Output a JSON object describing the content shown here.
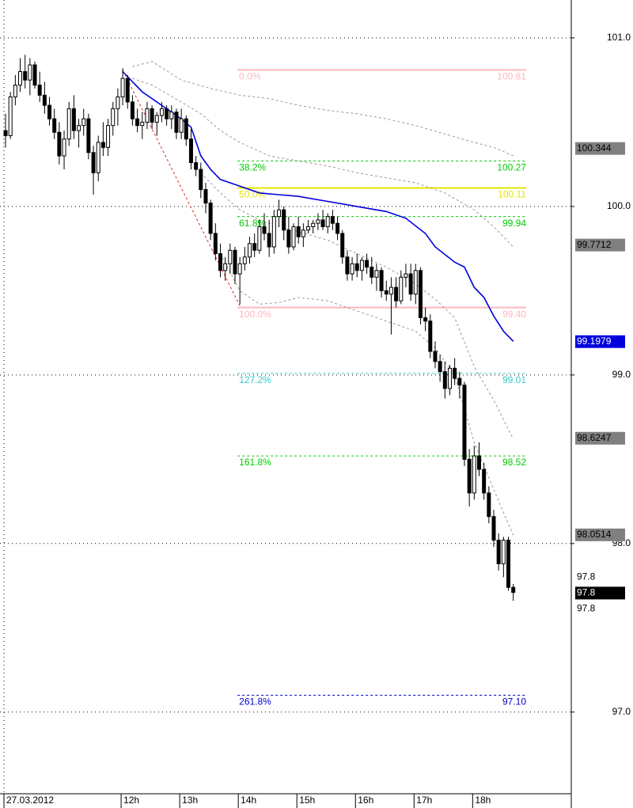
{
  "chart_data": {
    "type": "candlestick",
    "categories": [
      "27.03.2012",
      null,
      null,
      null,
      null,
      null,
      null,
      null,
      null,
      null,
      null,
      null,
      null,
      null,
      null,
      null,
      null,
      null,
      null,
      null,
      null,
      null,
      null,
      null,
      "12h",
      null,
      null,
      null,
      null,
      null,
      null,
      null,
      null,
      null,
      null,
      null,
      "13h",
      null,
      null,
      null,
      null,
      null,
      null,
      null,
      null,
      null,
      null,
      null,
      "14h",
      null,
      null,
      null,
      null,
      null,
      null,
      null,
      null,
      null,
      null,
      null,
      "15h",
      null,
      null,
      null,
      null,
      null,
      null,
      null,
      null,
      null,
      null,
      null,
      "16h",
      null,
      null,
      null,
      null,
      null,
      null,
      null,
      null,
      null,
      null,
      null,
      "17h",
      null,
      null,
      null,
      null,
      null,
      null,
      null,
      null,
      null,
      null,
      null,
      "18h",
      null,
      null,
      null,
      null,
      null,
      null,
      null,
      null
    ],
    "ohlc": {
      "open": [
        100.45,
        100.42,
        100.65,
        100.72,
        100.8,
        100.75,
        100.84,
        100.72,
        100.66,
        100.6,
        100.52,
        100.44,
        100.3,
        100.4,
        100.58,
        100.45,
        100.48,
        100.52,
        100.32,
        100.2,
        100.38,
        100.35,
        100.48,
        100.58,
        100.65,
        100.76,
        100.62,
        100.52,
        100.48,
        100.5,
        100.58,
        100.5,
        100.54,
        100.58,
        100.52,
        100.56,
        100.44,
        100.52,
        100.4,
        100.26,
        100.22,
        100.1,
        100.02,
        99.84,
        99.72,
        99.62,
        99.66,
        99.74,
        99.6,
        99.66,
        99.7,
        99.78,
        99.74,
        99.88,
        99.84,
        99.76,
        99.94,
        99.98,
        99.86,
        99.76,
        99.88,
        99.82,
        99.86,
        99.88,
        99.9,
        99.92,
        99.88,
        99.94,
        99.9,
        99.84,
        99.7,
        99.6,
        99.66,
        99.62,
        99.68,
        99.64,
        99.58,
        99.62,
        99.5,
        99.48,
        99.52,
        99.44,
        99.58,
        99.6,
        99.48,
        99.62,
        99.34,
        99.32,
        99.14,
        99.08,
        99.02,
        98.92,
        99.04,
        98.98,
        98.94,
        98.5,
        98.3,
        98.52,
        98.44,
        98.3,
        98.16,
        98.02,
        97.88,
        98.02,
        97.74
      ],
      "high": [
        100.55,
        100.68,
        100.78,
        100.88,
        100.9,
        100.88,
        100.86,
        100.8,
        100.74,
        100.65,
        100.58,
        100.5,
        100.45,
        100.62,
        100.66,
        100.52,
        100.58,
        100.55,
        100.36,
        100.42,
        100.5,
        100.52,
        100.62,
        100.7,
        100.82,
        100.78,
        100.66,
        100.58,
        100.56,
        100.62,
        100.6,
        100.56,
        100.62,
        100.6,
        100.6,
        100.58,
        100.58,
        100.54,
        100.46,
        100.3,
        100.26,
        100.14,
        100.04,
        99.9,
        99.78,
        99.7,
        99.78,
        99.76,
        99.7,
        99.76,
        99.82,
        99.84,
        99.92,
        99.96,
        99.92,
        99.98,
        100.04,
        100.0,
        99.94,
        99.9,
        99.94,
        99.9,
        99.92,
        99.92,
        99.96,
        99.98,
        99.96,
        99.98,
        99.94,
        99.86,
        99.74,
        99.7,
        99.72,
        99.7,
        99.72,
        99.7,
        99.66,
        99.64,
        99.56,
        99.58,
        99.58,
        99.62,
        99.66,
        99.66,
        99.66,
        99.64,
        99.4,
        99.36,
        99.2,
        99.12,
        99.08,
        99.06,
        99.1,
        99.02,
        98.96,
        98.56,
        98.58,
        98.6,
        98.48,
        98.34,
        98.2,
        98.06,
        98.04,
        98.04,
        97.76
      ],
      "low": [
        100.35,
        100.4,
        100.6,
        100.68,
        100.7,
        100.66,
        100.7,
        100.62,
        100.55,
        100.48,
        100.4,
        100.25,
        100.22,
        100.36,
        100.4,
        100.35,
        100.42,
        100.28,
        100.07,
        100.15,
        100.3,
        100.3,
        100.42,
        100.48,
        100.6,
        100.58,
        100.48,
        100.44,
        100.4,
        100.46,
        100.46,
        100.42,
        100.5,
        100.48,
        100.46,
        100.4,
        100.4,
        100.36,
        100.22,
        100.18,
        100.05,
        99.96,
        99.8,
        99.68,
        99.58,
        99.56,
        99.6,
        99.54,
        99.42,
        99.62,
        99.66,
        99.7,
        99.72,
        99.8,
        99.7,
        99.72,
        99.88,
        99.8,
        99.72,
        99.74,
        99.78,
        99.76,
        99.84,
        99.84,
        99.86,
        99.86,
        99.84,
        99.86,
        99.8,
        99.66,
        99.56,
        99.56,
        99.58,
        99.56,
        99.6,
        99.54,
        99.5,
        99.46,
        99.44,
        99.24,
        99.4,
        99.42,
        99.52,
        99.44,
        99.42,
        99.3,
        99.26,
        99.1,
        99.04,
        98.96,
        98.86,
        98.88,
        98.94,
        98.86,
        98.46,
        98.22,
        98.26,
        98.4,
        98.26,
        98.12,
        97.98,
        97.84,
        97.8,
        97.72,
        97.66
      ],
      "close": [
        100.42,
        100.65,
        100.72,
        100.8,
        100.75,
        100.84,
        100.72,
        100.66,
        100.6,
        100.52,
        100.44,
        100.3,
        100.4,
        100.58,
        100.45,
        100.48,
        100.52,
        100.32,
        100.2,
        100.38,
        100.35,
        100.48,
        100.58,
        100.65,
        100.76,
        100.62,
        100.52,
        100.48,
        100.5,
        100.58,
        100.5,
        100.54,
        100.58,
        100.52,
        100.56,
        100.44,
        100.52,
        100.4,
        100.26,
        100.22,
        100.1,
        100.02,
        99.84,
        99.72,
        99.62,
        99.66,
        99.74,
        99.6,
        99.66,
        99.7,
        99.78,
        99.74,
        99.88,
        99.84,
        99.76,
        99.94,
        99.98,
        99.86,
        99.76,
        99.88,
        99.82,
        99.86,
        99.88,
        99.9,
        99.92,
        99.88,
        99.94,
        99.9,
        99.84,
        99.7,
        99.6,
        99.66,
        99.62,
        99.68,
        99.64,
        99.58,
        99.62,
        99.5,
        99.48,
        99.52,
        99.44,
        99.58,
        99.6,
        99.48,
        99.62,
        99.34,
        99.32,
        99.14,
        99.08,
        99.02,
        98.92,
        99.04,
        98.98,
        98.94,
        98.5,
        98.3,
        98.52,
        98.44,
        98.3,
        98.16,
        98.02,
        97.88,
        98.02,
        97.74,
        97.71
      ],
      "up_color": "#ffffff",
      "down_color": "#000000"
    },
    "overlays": [
      {
        "color": "#999999",
        "dashed": true,
        "x": [
          26,
          30,
          36,
          42,
          48,
          54,
          60,
          66,
          72,
          78,
          84,
          90,
          96,
          100,
          104
        ],
        "values": [
          100.83,
          100.86,
          100.75,
          100.7,
          100.66,
          100.64,
          100.6,
          100.57,
          100.55,
          100.52,
          100.48,
          100.43,
          100.38,
          100.35,
          100.3
        ]
      },
      {
        "color": "#999999",
        "dashed": true,
        "x": [
          26,
          30,
          36,
          40,
          44,
          48,
          54,
          60,
          66,
          72,
          78,
          84,
          90,
          96,
          100,
          104
        ],
        "values": [
          100.76,
          100.72,
          100.62,
          100.55,
          100.45,
          100.38,
          100.3,
          100.27,
          100.24,
          100.2,
          100.17,
          100.14,
          100.08,
          99.98,
          99.88,
          99.76
        ]
      },
      {
        "color": "#999999",
        "dashed": true,
        "x": [
          40,
          44,
          48,
          52,
          56,
          60,
          66,
          72,
          78,
          84,
          88,
          92,
          96,
          100,
          104
        ],
        "values": [
          100.2,
          100.08,
          99.98,
          99.92,
          99.88,
          99.85,
          99.8,
          99.72,
          99.64,
          99.54,
          99.45,
          99.34,
          99.05,
          98.85,
          98.62
        ]
      },
      {
        "color": "#999999",
        "dashed": true,
        "x": [
          44,
          48,
          52,
          56,
          60,
          66,
          72,
          78,
          84,
          88,
          92,
          96,
          100,
          104
        ],
        "values": [
          99.72,
          99.5,
          99.42,
          99.43,
          99.46,
          99.44,
          99.38,
          99.32,
          99.26,
          99.16,
          99.0,
          98.6,
          98.32,
          98.05
        ]
      },
      {
        "color": "#0000dd",
        "dashed": false,
        "x": [
          24,
          28,
          32,
          36,
          38,
          40,
          42,
          44,
          48,
          52,
          56,
          60,
          66,
          72,
          78,
          82,
          86,
          88,
          92,
          94,
          96,
          98,
          100,
          102,
          104
        ],
        "values": [
          100.8,
          100.68,
          100.6,
          100.52,
          100.47,
          100.3,
          100.22,
          100.16,
          100.12,
          100.08,
          100.07,
          100.06,
          100.03,
          100.0,
          99.97,
          99.93,
          99.84,
          99.76,
          99.67,
          99.64,
          99.52,
          99.46,
          99.35,
          99.26,
          99.2
        ]
      },
      {
        "color": "#ee2222",
        "dashed": true,
        "x": [
          24,
          48
        ],
        "values": [
          100.81,
          99.41
        ]
      }
    ],
    "fibonacci": [
      {
        "ratio_label": "0.0%",
        "value": 100.81,
        "value_label": "100.81",
        "color": "#ffb6c1",
        "dashed": false
      },
      {
        "ratio_label": "38.2%",
        "value": 100.27,
        "value_label": "100.27",
        "color": "#00cc00",
        "dashed": true
      },
      {
        "ratio_label": "50.0%",
        "value": 100.11,
        "value_label": "100.11",
        "color": "#e6e600",
        "dashed": false
      },
      {
        "ratio_label": "61.8%",
        "value": 99.94,
        "value_label": "99.94",
        "color": "#00cc00",
        "dashed": true
      },
      {
        "ratio_label": "100.0%",
        "value": 99.4,
        "value_label": "99.40",
        "color": "#ffb6c1",
        "dashed": false
      },
      {
        "ratio_label": "127.2%",
        "value": 99.01,
        "value_label": "99.01",
        "color": "#33cccc",
        "dashed": true
      },
      {
        "ratio_label": "161.8%",
        "value": 98.52,
        "value_label": "98.52",
        "color": "#00cc00",
        "dashed": true
      },
      {
        "ratio_label": "261.8%",
        "value": 97.1,
        "value_label": "97.10",
        "color": "#0000cc",
        "dashed": true
      }
    ],
    "price_tags": [
      {
        "value": 100.344,
        "label": "100.344",
        "style": "gray"
      },
      {
        "value": 99.7712,
        "label": "99.7712",
        "style": "gray"
      },
      {
        "value": 99.1979,
        "label": "99.1979",
        "style": "blue"
      },
      {
        "value": 98.6247,
        "label": "98.6247",
        "style": "gray"
      },
      {
        "value": 98.0514,
        "label": "98.0514",
        "style": "gray"
      },
      {
        "value": 97.8,
        "label": "97.8",
        "style": "plain"
      },
      {
        "value": 97.8,
        "label": "97.8",
        "style": "black"
      },
      {
        "value": 97.8,
        "label": "97.8",
        "style": "plain"
      }
    ],
    "ylim": [
      96.52,
      101.225
    ],
    "yticks": [
      {
        "value": 97,
        "label": "97.0"
      },
      {
        "value": 98,
        "label": "98.0"
      },
      {
        "value": 99,
        "label": "99.0"
      },
      {
        "value": 100,
        "label": "100.0"
      },
      {
        "value": 101,
        "label": "101.0"
      }
    ],
    "grid": true
  }
}
